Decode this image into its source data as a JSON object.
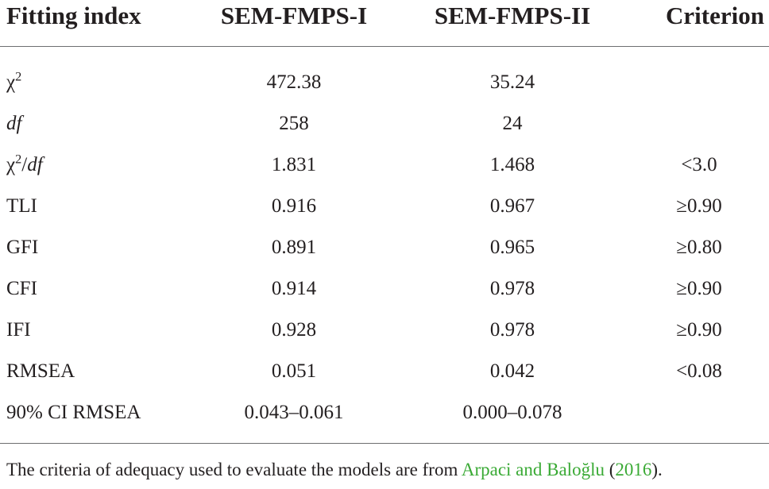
{
  "table": {
    "header": [
      "Fitting index",
      "SEM-FMPS-I",
      "SEM-FMPS-II",
      "Criterion"
    ],
    "rows": [
      [
        [
          {
            "text": "χ",
            "format": "normal"
          },
          {
            "text": "2",
            "format": "sup"
          }
        ],
        "472.38",
        "35.24",
        null
      ],
      [
        [
          {
            "text": "df",
            "format": "italic"
          }
        ],
        "258",
        "24",
        null
      ],
      [
        [
          {
            "text": "χ",
            "format": "normal"
          },
          {
            "text": "2",
            "format": "sup"
          },
          {
            "text": "/",
            "format": "normal"
          },
          {
            "text": "df",
            "format": "italic"
          }
        ],
        "1.831",
        "1.468",
        "<3.0"
      ],
      [
        [
          {
            "text": "TLI",
            "format": "normal"
          }
        ],
        "0.916",
        "0.967",
        "≥0.90"
      ],
      [
        [
          {
            "text": "GFI",
            "format": "normal"
          }
        ],
        "0.891",
        "0.965",
        "≥0.80"
      ],
      [
        [
          {
            "text": "CFI",
            "format": "normal"
          }
        ],
        "0.914",
        "0.978",
        "≥0.90"
      ],
      [
        [
          {
            "text": "IFI",
            "format": "normal"
          }
        ],
        "0.928",
        "0.978",
        "≥0.90"
      ],
      [
        [
          {
            "text": "RMSEA",
            "format": "normal"
          }
        ],
        "0.051",
        "0.042",
        "<0.08"
      ],
      [
        [
          {
            "text": "90% CI RMSEA",
            "format": "normal"
          }
        ],
        "0.043–0.061",
        "0.000–0.078",
        null
      ]
    ]
  },
  "footnote": [
    {
      "text": "The criteria of adequacy used to evaluate the models are from ",
      "format": "normal"
    },
    {
      "text": "Arpaci and Baloğlu",
      "format": "link"
    },
    {
      "text": " (",
      "format": "normal"
    },
    {
      "text": "2016",
      "format": "link"
    },
    {
      "text": ").",
      "format": "normal"
    }
  ]
}
